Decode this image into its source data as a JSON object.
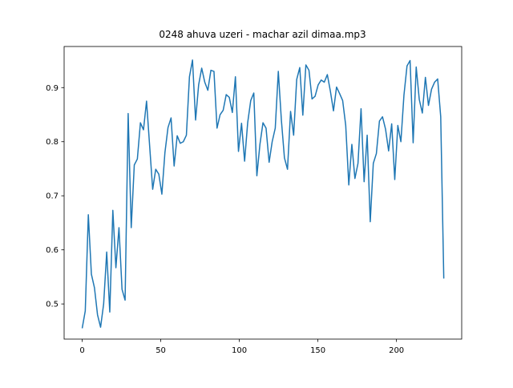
{
  "chart_data": {
    "type": "line",
    "title": "0248 ahuva uzeri - machar azil dimaa.mp3",
    "x": [
      0,
      1.95,
      3.9,
      5.85,
      7.8,
      9.75,
      11.7,
      13.65,
      15.6,
      17.55,
      19.5,
      21.45,
      23.4,
      25.35,
      27.3,
      29.25,
      31.2,
      33.15,
      35.1,
      37.05,
      39,
      40.95,
      42.9,
      44.85,
      46.8,
      48.75,
      50.7,
      52.65,
      54.6,
      56.55,
      58.5,
      60.45,
      62.4,
      64.35,
      66.3,
      68.25,
      70.2,
      72.15,
      74.1,
      76.05,
      78,
      79.95,
      81.9,
      83.85,
      85.8,
      87.75,
      89.7,
      91.65,
      93.6,
      95.55,
      97.5,
      99.45,
      101.4,
      103.35,
      105.3,
      107.25,
      109.2,
      111.15,
      113.1,
      115.05,
      117,
      118.95,
      120.9,
      122.85,
      124.8,
      126.75,
      128.7,
      130.65,
      132.6,
      134.55,
      136.5,
      138.45,
      140.4,
      142.35,
      144.3,
      146.25,
      148.2,
      150.15,
      152.1,
      154.05,
      156,
      157.95,
      159.9,
      161.85,
      163.8,
      165.75,
      167.7,
      169.65,
      171.6,
      173.55,
      175.5,
      177.45,
      179.4,
      181.35,
      183.3,
      185.25,
      187.2,
      189.15,
      191.1,
      193.05,
      195,
      196.95,
      198.9,
      200.85,
      202.8,
      204.75,
      206.7,
      208.65,
      210.6,
      212.55,
      214.5,
      216.45,
      218.4,
      220.35,
      222.3,
      224.25,
      226.2,
      228.15,
      230.1
    ],
    "series": [
      {
        "color": "#1f77b4",
        "values": [
          0.455,
          0.487,
          0.665,
          0.555,
          0.53,
          0.48,
          0.457,
          0.5,
          0.596,
          0.485,
          0.673,
          0.567,
          0.641,
          0.527,
          0.507,
          0.852,
          0.641,
          0.757,
          0.768,
          0.835,
          0.822,
          0.875,
          0.793,
          0.712,
          0.749,
          0.74,
          0.703,
          0.78,
          0.826,
          0.844,
          0.755,
          0.811,
          0.797,
          0.8,
          0.812,
          0.92,
          0.951,
          0.84,
          0.905,
          0.936,
          0.91,
          0.895,
          0.932,
          0.93,
          0.825,
          0.85,
          0.858,
          0.887,
          0.882,
          0.854,
          0.92,
          0.782,
          0.834,
          0.764,
          0.835,
          0.876,
          0.89,
          0.737,
          0.795,
          0.835,
          0.825,
          0.762,
          0.8,
          0.825,
          0.93,
          0.84,
          0.77,
          0.749,
          0.856,
          0.812,
          0.915,
          0.937,
          0.849,
          0.942,
          0.932,
          0.879,
          0.884,
          0.905,
          0.914,
          0.91,
          0.924,
          0.893,
          0.857,
          0.901,
          0.889,
          0.876,
          0.83,
          0.72,
          0.795,
          0.732,
          0.76,
          0.861,
          0.726,
          0.812,
          0.652,
          0.76,
          0.778,
          0.838,
          0.846,
          0.823,
          0.783,
          0.833,
          0.73,
          0.83,
          0.8,
          0.886,
          0.94,
          0.95,
          0.798,
          0.938,
          0.878,
          0.853,
          0.919,
          0.867,
          0.897,
          0.91,
          0.916,
          0.846,
          0.547
        ]
      }
    ],
    "xlim": [
      -11.5,
      241.5
    ],
    "xticks": [
      0,
      50,
      100,
      150,
      200
    ],
    "ylim": [
      0.435,
      0.976
    ],
    "yticks": [
      0.5,
      0.6,
      0.7,
      0.8,
      0.9
    ]
  }
}
